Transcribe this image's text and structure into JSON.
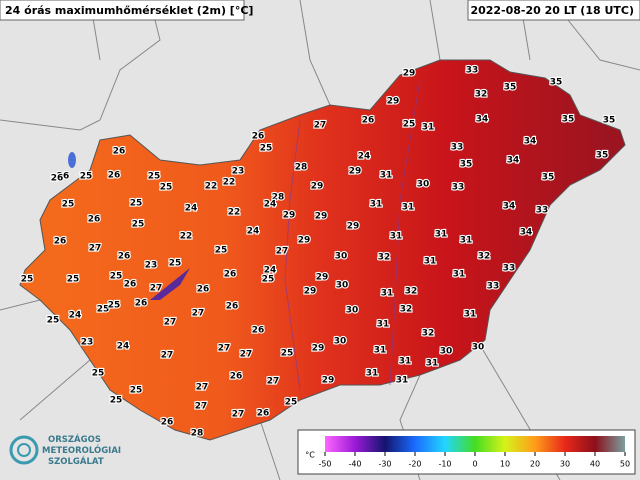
{
  "header": {
    "title": "24 órás maximumhőmérséklet (2m) [°C]",
    "time": "2022-08-20 20 LT (18 UTC)"
  },
  "stations": [
    29,
    33,
    35,
    35,
    29,
    32,
    35,
    35,
    27,
    26,
    25,
    31,
    34,
    26,
    25,
    33,
    34,
    35,
    26,
    24,
    34,
    23,
    28,
    29,
    31,
    35,
    35,
    26,
    26,
    25,
    26,
    25,
    25,
    22,
    22,
    28,
    29,
    30,
    33,
    25,
    25,
    24,
    22,
    24,
    29,
    29,
    31,
    31,
    34,
    33,
    26,
    25,
    24,
    29,
    31,
    31,
    31,
    34,
    26,
    27,
    22,
    29,
    25,
    27,
    26,
    30,
    32,
    31,
    32,
    25,
    25,
    23,
    25,
    25,
    26,
    24,
    25,
    29,
    31,
    33,
    26,
    27,
    26,
    29,
    30,
    31,
    32,
    33,
    25,
    24,
    25,
    25,
    26,
    27,
    26,
    27,
    30,
    32,
    31,
    31,
    23,
    24,
    26,
    32,
    27,
    30,
    29,
    27,
    25,
    31,
    27,
    31,
    30,
    30,
    25,
    26,
    27,
    31,
    31,
    31,
    29,
    25,
    27,
    25,
    27,
    25,
    26,
    27,
    26,
    28
  ],
  "legend": {
    "unit": "°C",
    "ticks": [
      -50,
      -40,
      -30,
      -20,
      -10,
      0,
      10,
      20,
      30,
      40,
      50
    ],
    "colors": [
      "#ff66ff",
      "#9a1ad6",
      "#14146e",
      "#1a6cff",
      "#22d6ff",
      "#44dd22",
      "#d6f21a",
      "#ff9c1a",
      "#e8281a",
      "#8c0f1a",
      "#7aa0a0"
    ]
  },
  "logo": {
    "lines": [
      "ORSZÁGOS",
      "METEOROLÓGIAI",
      "SZOLGÁLAT"
    ]
  }
}
